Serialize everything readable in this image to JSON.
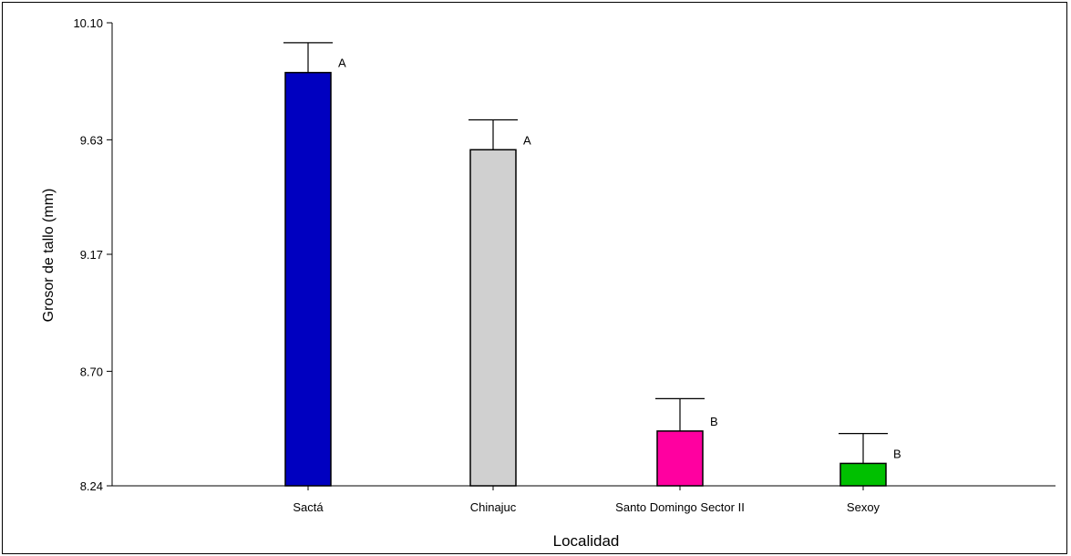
{
  "chart_data": {
    "type": "bar",
    "title": "",
    "xlabel": "Localidad",
    "ylabel": "Grosor de tallo (mm)",
    "ylim": [
      8.24,
      10.1
    ],
    "yticks": [
      "8.24",
      "8.70",
      "9.17",
      "9.63",
      "10.10"
    ],
    "categories": [
      "Sactá",
      "Chinajuc",
      "Santo Domingo Sector II",
      "Sexoy"
    ],
    "values": [
      9.9,
      9.59,
      8.46,
      8.33
    ],
    "errors": [
      0.12,
      0.12,
      0.13,
      0.12
    ],
    "significance": [
      "A",
      "A",
      "B",
      "B"
    ],
    "colors": [
      "#0000C0",
      "#D0D0D0",
      "#FF00A0",
      "#00C000"
    ],
    "grid": false,
    "legend": "none"
  }
}
